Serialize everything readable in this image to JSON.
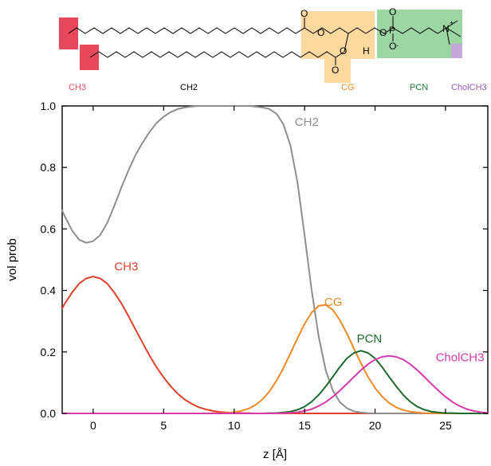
{
  "molecule": {
    "group_labels": [
      {
        "key": "ch3",
        "text": "CH3",
        "color": "#e8485c"
      },
      {
        "key": "ch2",
        "text": "CH2",
        "color": "#000000"
      },
      {
        "key": "cg",
        "text": "CG",
        "color": "#f08a20"
      },
      {
        "key": "pcn",
        "text": "PCN",
        "color": "#1e7a34"
      },
      {
        "key": "cholch3",
        "text": "CholCH3",
        "color": "#9b59b6"
      }
    ],
    "highlight_colors": {
      "ch3": "#e8485c",
      "cg": "#fdd9a0",
      "pcn": "#9bd6a3",
      "cholch3": "#c6a7dc"
    },
    "atoms": {
      "o1": "O",
      "o2": "O",
      "o3": "O",
      "o4": "O",
      "o5": "O",
      "o6": "O",
      "o7": "O",
      "p": "P",
      "n": "N",
      "nplus": "+",
      "ominus": "-",
      "h": "H"
    }
  },
  "chart_data": {
    "type": "line",
    "xlabel": "z [Å]",
    "ylabel": "vol prob",
    "xlim": [
      -2.2,
      28
    ],
    "ylim": [
      0,
      1.0
    ],
    "xticks": [
      0,
      5,
      10,
      15,
      20,
      25
    ],
    "xtick_labels": [
      "0",
      "5",
      "10",
      "15",
      "20",
      "25"
    ],
    "yticks": [
      0.0,
      0.2,
      0.4,
      0.6,
      0.8,
      1.0
    ],
    "ytick_labels": [
      "0.0",
      "0.2",
      "0.4",
      "0.6",
      "0.8",
      "1.0"
    ],
    "grid": false,
    "x": [
      -2.2,
      -2,
      -1.5,
      -1,
      -0.5,
      0,
      0.5,
      1,
      1.5,
      2,
      2.5,
      3,
      3.5,
      4,
      4.5,
      5,
      5.5,
      6,
      6.5,
      7,
      7.5,
      8,
      8.5,
      9,
      9.5,
      10,
      10.5,
      11,
      11.5,
      12,
      12.5,
      13,
      13.5,
      14,
      14.5,
      15,
      15.5,
      16,
      16.5,
      17,
      17.5,
      18,
      18.5,
      19,
      19.5,
      20,
      20.5,
      21,
      21.5,
      22,
      22.5,
      23,
      23.5,
      24,
      24.5,
      25,
      25.5,
      26,
      26.5,
      27,
      27.5,
      28
    ],
    "series": [
      {
        "name": "CH3",
        "color": "#e0402c",
        "label_at": [
          1.5,
          0.465
        ],
        "values": [
          0.342,
          0.358,
          0.393,
          0.422,
          0.439,
          0.445,
          0.439,
          0.422,
          0.393,
          0.358,
          0.317,
          0.273,
          0.23,
          0.188,
          0.15,
          0.117,
          0.088,
          0.064,
          0.045,
          0.031,
          0.02,
          0.013,
          0.008,
          0.005,
          0.003,
          0.002,
          0.001,
          0.001,
          0,
          0,
          0,
          0,
          0,
          0,
          0,
          0,
          0,
          0,
          0,
          0,
          0,
          0,
          0,
          0,
          0,
          0,
          0,
          0,
          0,
          0,
          0,
          0,
          0,
          0,
          0,
          0,
          0,
          0,
          0,
          0,
          0,
          0
        ]
      },
      {
        "name": "CH2",
        "color": "#8e8e8e",
        "label_at": [
          14.3,
          0.935
        ],
        "values": [
          0.66,
          0.64,
          0.595,
          0.565,
          0.555,
          0.56,
          0.58,
          0.62,
          0.675,
          0.735,
          0.79,
          0.84,
          0.88,
          0.915,
          0.945,
          0.965,
          0.98,
          0.99,
          0.995,
          0.998,
          1.0,
          1.0,
          1.0,
          1.0,
          1.0,
          1.0,
          1.0,
          1.0,
          0.998,
          0.995,
          0.99,
          0.975,
          0.94,
          0.87,
          0.75,
          0.58,
          0.4,
          0.25,
          0.14,
          0.075,
          0.037,
          0.017,
          0.007,
          0.003,
          0.001,
          0,
          0,
          0,
          0,
          0,
          0,
          0,
          0,
          0,
          0,
          0,
          0,
          0,
          0,
          0,
          0,
          0
        ]
      },
      {
        "name": "CG",
        "color": "#f08a28",
        "label_at": [
          16.4,
          0.35
        ],
        "values": [
          0,
          0,
          0,
          0,
          0,
          0,
          0,
          0,
          0,
          0,
          0,
          0,
          0,
          0,
          0,
          0,
          0,
          0,
          0,
          0,
          0,
          0,
          0.001,
          0.001,
          0.002,
          0.004,
          0.008,
          0.015,
          0.027,
          0.045,
          0.071,
          0.106,
          0.148,
          0.196,
          0.245,
          0.291,
          0.328,
          0.35,
          0.353,
          0.337,
          0.304,
          0.26,
          0.211,
          0.163,
          0.119,
          0.083,
          0.055,
          0.034,
          0.02,
          0.011,
          0.006,
          0.003,
          0.001,
          0.001,
          0,
          0,
          0,
          0,
          0,
          0,
          0,
          0
        ]
      },
      {
        "name": "PCN",
        "color": "#1e6a2c",
        "label_at": [
          18.7,
          0.23
        ],
        "values": [
          0,
          0,
          0,
          0,
          0,
          0,
          0,
          0,
          0,
          0,
          0,
          0,
          0,
          0,
          0,
          0,
          0,
          0,
          0,
          0,
          0,
          0,
          0,
          0,
          0,
          0,
          0,
          0,
          0,
          0,
          0.001,
          0.001,
          0.003,
          0.006,
          0.012,
          0.022,
          0.038,
          0.06,
          0.088,
          0.119,
          0.151,
          0.179,
          0.197,
          0.204,
          0.197,
          0.179,
          0.151,
          0.119,
          0.088,
          0.06,
          0.038,
          0.022,
          0.012,
          0.006,
          0.003,
          0.001,
          0.001,
          0,
          0,
          0,
          0,
          0
        ]
      },
      {
        "name": "CholCH3",
        "color": "#d63aaa",
        "label_at": [
          24.3,
          0.17
        ],
        "values": [
          0,
          0,
          0,
          0,
          0,
          0,
          0,
          0,
          0,
          0,
          0,
          0,
          0,
          0,
          0,
          0,
          0,
          0,
          0,
          0,
          0,
          0,
          0,
          0,
          0,
          0,
          0,
          0,
          0,
          0,
          0,
          0,
          0.001,
          0.002,
          0.004,
          0.008,
          0.014,
          0.024,
          0.037,
          0.054,
          0.074,
          0.096,
          0.119,
          0.141,
          0.16,
          0.175,
          0.184,
          0.187,
          0.184,
          0.175,
          0.16,
          0.141,
          0.119,
          0.096,
          0.074,
          0.054,
          0.037,
          0.024,
          0.014,
          0.008,
          0.004,
          0.002
        ]
      }
    ]
  }
}
